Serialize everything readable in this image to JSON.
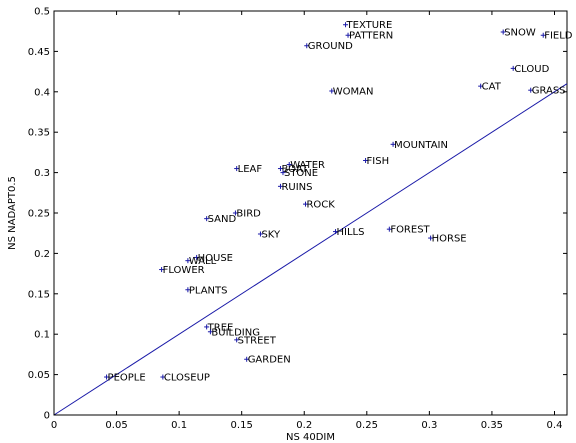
{
  "chart_data": {
    "type": "scatter",
    "title": "",
    "xlabel": "NS 40DIM",
    "ylabel": "NS NADAPT0.5",
    "xlim": [
      0,
      0.41
    ],
    "ylim": [
      0,
      0.5
    ],
    "xticks": [
      0,
      0.05,
      0.1,
      0.15,
      0.2,
      0.25,
      0.3,
      0.35,
      0.4
    ],
    "xtick_labels": [
      "0",
      "0.05",
      "0.1",
      "0.15",
      "0.2",
      "0.25",
      "0.3",
      "0.35",
      "0.4"
    ],
    "yticks": [
      0,
      0.05,
      0.1,
      0.15,
      0.2,
      0.25,
      0.3,
      0.35,
      0.4,
      0.45,
      0.5
    ],
    "ytick_labels": [
      "0",
      "0.05",
      "0.1",
      "0.15",
      "0.2",
      "0.25",
      "0.3",
      "0.35",
      "0.4",
      "0.45",
      "0.5"
    ],
    "grid": false,
    "marker": "+",
    "color": "#1a1aa8",
    "reference_line": {
      "from": [
        0,
        0
      ],
      "to": [
        0.41,
        0.41
      ]
    },
    "points": [
      {
        "label": "TEXTURE",
        "x": 0.233,
        "y": 0.483
      },
      {
        "label": "PATTERN",
        "x": 0.235,
        "y": 0.47
      },
      {
        "label": "GROUND",
        "x": 0.202,
        "y": 0.457
      },
      {
        "label": "SNOW",
        "x": 0.359,
        "y": 0.474
      },
      {
        "label": "FIELD",
        "x": 0.391,
        "y": 0.47
      },
      {
        "label": "CLOUD",
        "x": 0.367,
        "y": 0.429
      },
      {
        "label": "CAT",
        "x": 0.341,
        "y": 0.407
      },
      {
        "label": "GRASS",
        "x": 0.381,
        "y": 0.402
      },
      {
        "label": "WOMAN",
        "x": 0.222,
        "y": 0.401
      },
      {
        "label": "MOUNTAIN",
        "x": 0.271,
        "y": 0.335
      },
      {
        "label": "FISH",
        "x": 0.249,
        "y": 0.315
      },
      {
        "label": "WATER",
        "x": 0.188,
        "y": 0.31
      },
      {
        "label": "LEAF",
        "x": 0.146,
        "y": 0.305
      },
      {
        "label": "BOAT",
        "x": 0.181,
        "y": 0.305
      },
      {
        "label": "STONE",
        "x": 0.183,
        "y": 0.3
      },
      {
        "label": "RUINS",
        "x": 0.181,
        "y": 0.283
      },
      {
        "label": "ROCK",
        "x": 0.201,
        "y": 0.261
      },
      {
        "label": "BIRD",
        "x": 0.145,
        "y": 0.25
      },
      {
        "label": "SAND",
        "x": 0.122,
        "y": 0.243
      },
      {
        "label": "FOREST",
        "x": 0.268,
        "y": 0.23
      },
      {
        "label": "HILLS",
        "x": 0.225,
        "y": 0.227
      },
      {
        "label": "SKY",
        "x": 0.165,
        "y": 0.224
      },
      {
        "label": "HORSE",
        "x": 0.301,
        "y": 0.219
      },
      {
        "label": "HOUSE",
        "x": 0.114,
        "y": 0.195
      },
      {
        "label": "WALL",
        "x": 0.107,
        "y": 0.191
      },
      {
        "label": "FLOWER",
        "x": 0.086,
        "y": 0.18
      },
      {
        "label": "PLANTS",
        "x": 0.107,
        "y": 0.155
      },
      {
        "label": "TREE",
        "x": 0.122,
        "y": 0.109
      },
      {
        "label": "BUILDING",
        "x": 0.125,
        "y": 0.103
      },
      {
        "label": "STREET",
        "x": 0.146,
        "y": 0.093
      },
      {
        "label": "GARDEN",
        "x": 0.154,
        "y": 0.069
      },
      {
        "label": "PEOPLE",
        "x": 0.042,
        "y": 0.047
      },
      {
        "label": "CLOSEUP",
        "x": 0.087,
        "y": 0.047
      }
    ]
  }
}
